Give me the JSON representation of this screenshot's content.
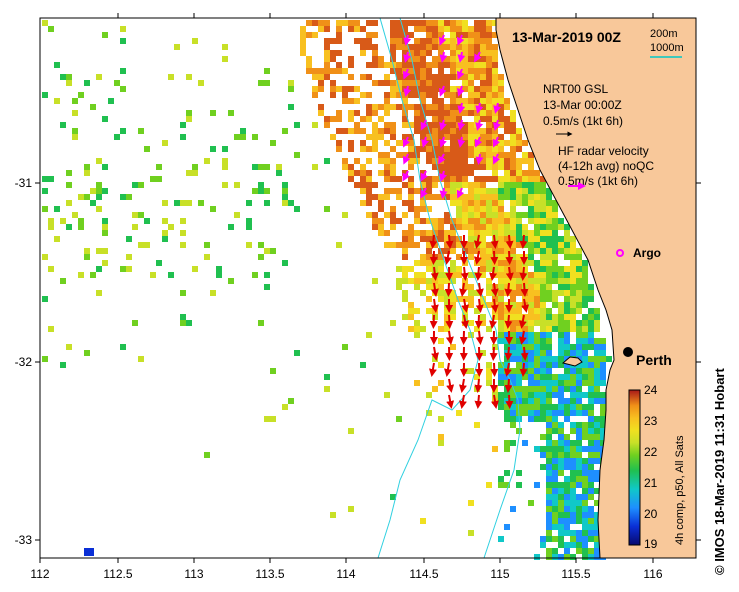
{
  "title": "13-Mar-2019 00Z",
  "scale_bar": {
    "major_label": "200m",
    "minor_label": "1000m",
    "line_color": "#00c8c8"
  },
  "legend_gsl": {
    "line1": "NRT00 GSL",
    "line2": "13-Mar 00:00Z",
    "line3": "0.5m/s (1kt 6h)"
  },
  "legend_hf": {
    "line1": "HF radar velocity",
    "line2": "(4-12h avg) noQC",
    "line3": "0.5m/s (1kt 6h)",
    "arrow_color": "#ff00ff"
  },
  "argo": {
    "label": "Argo",
    "color": "#ff00ff"
  },
  "city": {
    "label": "Perth"
  },
  "x_axis": {
    "ticks": [
      "112",
      "112.5",
      "113",
      "113.5",
      "114",
      "114.5",
      "115",
      "115.5",
      "116"
    ]
  },
  "y_axis": {
    "ticks": [
      "-31",
      "-32",
      "-33"
    ]
  },
  "colorbar": {
    "ticks": [
      "24",
      "23",
      "22",
      "21",
      "20",
      "19"
    ],
    "label": "4h comp, p50, All Sats",
    "colors": [
      "#08086e",
      "#0a2fd6",
      "#1e8fff",
      "#10c8c8",
      "#20c050",
      "#70d020",
      "#c8e028",
      "#f0e020",
      "#f8c020",
      "#f09018",
      "#d85a18",
      "#a81818"
    ]
  },
  "credit": "© IMOS 18-Mar-2019 11:31 Hobart",
  "colors": {
    "land": "#f8c89a",
    "coast": "#000000",
    "isobath": "#30d0e0",
    "gsl_arrow": "#e00000",
    "hf_arrow": "#ff00ff"
  }
}
